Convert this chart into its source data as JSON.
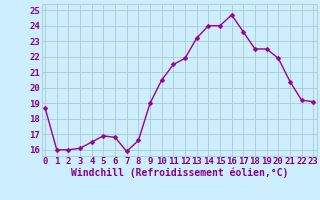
{
  "hours": [
    0,
    1,
    2,
    3,
    4,
    5,
    6,
    7,
    8,
    9,
    10,
    11,
    12,
    13,
    14,
    15,
    16,
    17,
    18,
    19,
    20,
    21,
    22,
    23
  ],
  "values": [
    18.7,
    16.0,
    16.0,
    16.1,
    16.5,
    16.9,
    16.8,
    15.9,
    16.6,
    19.0,
    20.5,
    21.5,
    21.9,
    23.2,
    24.0,
    24.0,
    24.7,
    23.6,
    22.5,
    22.5,
    21.9,
    20.4,
    19.2,
    19.1
  ],
  "line_color": "#990099",
  "marker": "D",
  "marker_size": 2.5,
  "linewidth": 1.0,
  "bg_color": "#cceeff",
  "grid_color": "#aacccc",
  "xlabel": "Windchill (Refroidissement éolien,°C)",
  "xlabel_color": "#880088",
  "xlabel_fontsize": 7,
  "yticks": [
    16,
    17,
    18,
    19,
    20,
    21,
    22,
    23,
    24,
    25
  ],
  "xticks": [
    0,
    1,
    2,
    3,
    4,
    5,
    6,
    7,
    8,
    9,
    10,
    11,
    12,
    13,
    14,
    15,
    16,
    17,
    18,
    19,
    20,
    21,
    22,
    23
  ],
  "xtick_labels": [
    "0",
    "1",
    "2",
    "3",
    "4",
    "5",
    "6",
    "7",
    "8",
    "9",
    "10",
    "11",
    "12",
    "13",
    "14",
    "15",
    "16",
    "17",
    "18",
    "19",
    "20",
    "21",
    "22",
    "23"
  ],
  "ylim": [
    15.6,
    25.4
  ],
  "xlim": [
    -0.3,
    23.3
  ],
  "tick_fontsize": 6.5,
  "tick_labelcolor": "#880088",
  "ylabel_fontsize": 6.5
}
